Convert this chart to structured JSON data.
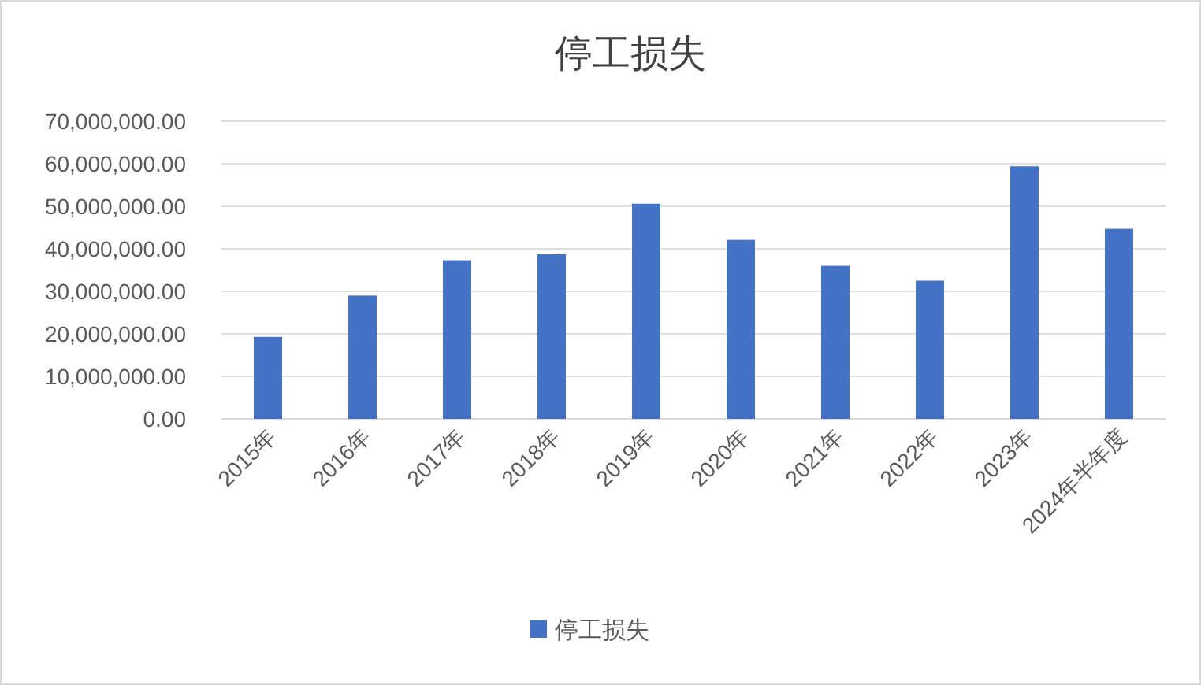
{
  "chart_data": {
    "type": "bar",
    "title": "停工损失",
    "categories": [
      "2015年",
      "2016年",
      "2017年",
      "2018年",
      "2019年",
      "2020年",
      "2021年",
      "2022年",
      "2023年",
      "2024年半年度"
    ],
    "series": [
      {
        "name": "停工损失",
        "color": "#4472c4",
        "values": [
          19300000,
          29000000,
          37300000,
          38700000,
          50600000,
          42100000,
          36000000,
          32500000,
          59400000,
          44700000
        ]
      }
    ],
    "ylim": [
      0,
      70000000
    ],
    "yticks": [
      {
        "value": 0,
        "label": "0.00"
      },
      {
        "value": 10000000,
        "label": "10,000,000.00"
      },
      {
        "value": 20000000,
        "label": "20,000,000.00"
      },
      {
        "value": 30000000,
        "label": "30,000,000.00"
      },
      {
        "value": 40000000,
        "label": "40,000,000.00"
      },
      {
        "value": 50000000,
        "label": "50,000,000.00"
      },
      {
        "value": 60000000,
        "label": "60,000,000.00"
      },
      {
        "value": 70000000,
        "label": "70,000,000.00"
      }
    ],
    "grid": "y",
    "legend": "bottom"
  }
}
